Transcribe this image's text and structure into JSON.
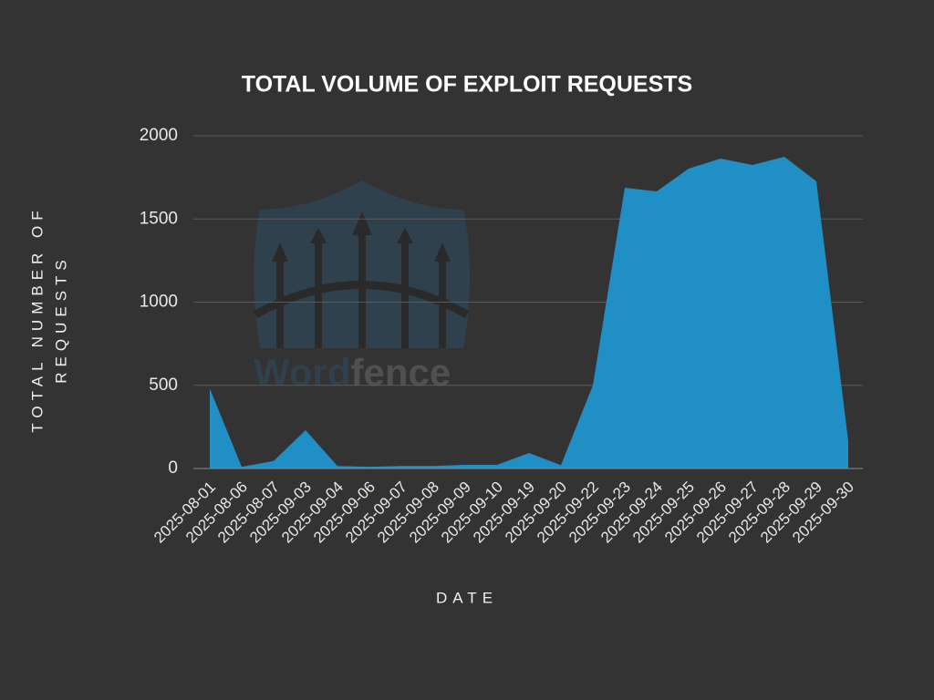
{
  "chart_data": {
    "type": "area",
    "title": "TOTAL VOLUME OF EXPLOIT REQUESTS",
    "xlabel": "DATE",
    "ylabel": [
      "TOTAL NUMBER OF",
      "REQUESTS"
    ],
    "watermark": [
      "Word",
      "fence"
    ],
    "categories": [
      "2025-08-01",
      "2025-08-06",
      "2025-08-07",
      "2025-09-03",
      "2025-09-04",
      "2025-09-06",
      "2025-09-07",
      "2025-09-08",
      "2025-09-09",
      "2025-09-10",
      "2025-09-19",
      "2025-09-20",
      "2025-09-22",
      "2025-09-23",
      "2025-09-24",
      "2025-09-25",
      "2025-09-26",
      "2025-09-27",
      "2025-09-28",
      "2025-09-29",
      "2025-09-30"
    ],
    "values": [
      480,
      10,
      45,
      230,
      15,
      10,
      15,
      15,
      22,
      22,
      93,
      20,
      500,
      1688,
      1666,
      1803,
      1863,
      1825,
      1874,
      1726,
      164
    ],
    "color": "#1f8fc6",
    "ylim": [
      0,
      2000
    ],
    "yticks": [
      0,
      500,
      1000,
      1500,
      2000
    ],
    "grid": true
  }
}
